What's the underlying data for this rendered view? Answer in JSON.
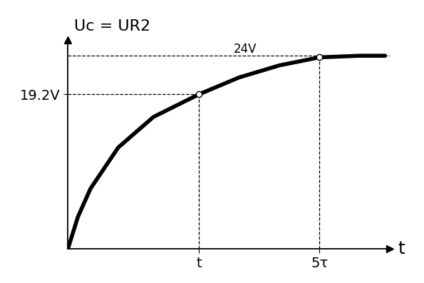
{
  "chart_data": {
    "type": "line",
    "y_label": "Uc = UR2",
    "x_label": "t",
    "x": [
      0,
      0.2,
      0.45,
      1.0,
      1.7,
      2.6,
      3.4,
      4.2,
      5.0,
      5.8,
      6.3
    ],
    "values": [
      0,
      4,
      7.5,
      12.6,
      16.4,
      19.2,
      21.3,
      22.8,
      23.8,
      24.0,
      24.0
    ],
    "color": "#000000",
    "xlim": [
      0,
      6.4
    ],
    "ylim": [
      0,
      26
    ],
    "xticks": [
      {
        "value": 2.6,
        "label": "t"
      },
      {
        "value": 5.0,
        "label": "5τ"
      }
    ],
    "yticks": [
      {
        "value": 19.2,
        "label": "19.2V"
      }
    ],
    "reference_lines": [
      {
        "value": 24,
        "label": "24V"
      }
    ],
    "points": [
      {
        "x": 2.6,
        "y": 19.2
      },
      {
        "x": 5.0,
        "y": 23.8
      }
    ]
  }
}
